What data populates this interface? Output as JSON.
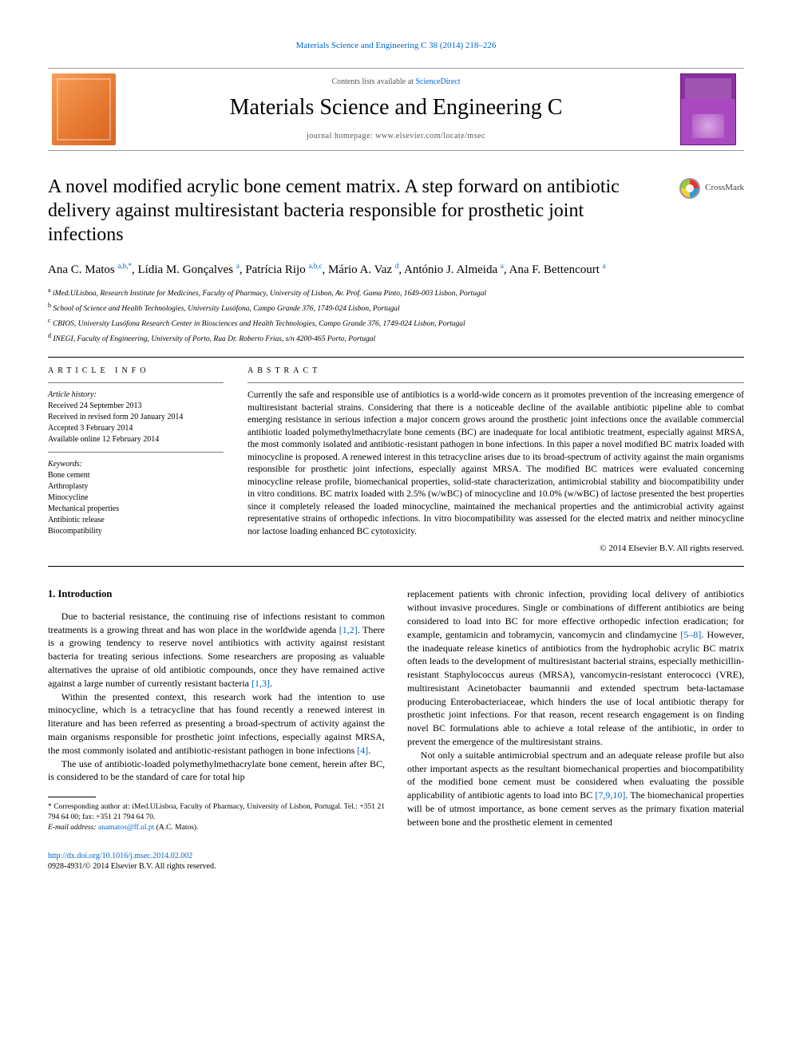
{
  "top_link": "Materials Science and Engineering C 38 (2014) 218–226",
  "header": {
    "contents_prefix": "Contents lists available at ",
    "contents_link": "ScienceDirect",
    "journal_title": "Materials Science and Engineering C",
    "homepage_prefix": "journal homepage: ",
    "homepage": "www.elsevier.com/locate/msec"
  },
  "crossmark_label": "CrossMark",
  "article_title": "A novel modified acrylic bone cement matrix. A step forward on antibiotic delivery against multiresistant bacteria responsible for prosthetic joint infections",
  "authors_html_parts": [
    {
      "name": "Ana C. Matos ",
      "sup": "a,b,",
      "star": "*"
    },
    {
      "name": ", Lídia M. Gonçalves ",
      "sup": "a"
    },
    {
      "name": ", Patrícia Rijo ",
      "sup": "a,b,c"
    },
    {
      "name": ", Mário A. Vaz ",
      "sup": "d"
    },
    {
      "name": ", António J. Almeida ",
      "sup": "a"
    },
    {
      "name": ", Ana F. Bettencourt ",
      "sup": "a"
    }
  ],
  "affiliations": [
    {
      "key": "a",
      "text": "iMed.ULisboa, Research Institute for Medicines, Faculty of Pharmacy, University of Lisbon, Av. Prof. Gama Pinto, 1649-003 Lisbon, Portugal"
    },
    {
      "key": "b",
      "text": "School of Science and Health Technologies, University Lusófona, Campo Grande 376, 1749-024 Lisbon, Portugal"
    },
    {
      "key": "c",
      "text": "CBIOS, University Lusófona Research Center in Biosciences and Health Technologies, Campo Grande 376, 1749-024 Lisbon, Portugal"
    },
    {
      "key": "d",
      "text": "INEGI, Faculty of Engineering, University of Porto, Rua Dr. Roberto Frias, s/n 4200-465 Porto, Portugal"
    }
  ],
  "info": {
    "heading": "article info",
    "history_head": "Article history:",
    "history": [
      "Received 24 September 2013",
      "Received in revised form 20 January 2014",
      "Accepted 3 February 2014",
      "Available online 12 February 2014"
    ],
    "keywords_head": "Keywords:",
    "keywords": [
      "Bone cement",
      "Arthroplasty",
      "Minocycline",
      "Mechanical properties",
      "Antibiotic release",
      "Biocompatibility"
    ]
  },
  "abstract": {
    "heading": "abstract",
    "text": "Currently the safe and responsible use of antibiotics is a world-wide concern as it promotes prevention of the increasing emergence of multiresistant bacterial strains. Considering that there is a noticeable decline of the available antibiotic pipeline able to combat emerging resistance in serious infection a major concern grows around the prosthetic joint infections once the available commercial antibiotic loaded polymethylmethacrylate bone cements (BC) are inadequate for local antibiotic treatment, especially against MRSA, the most commonly isolated and antibiotic-resistant pathogen in bone infections. In this paper a novel modified BC matrix loaded with minocycline is proposed. A renewed interest in this tetracycline arises due to its broad-spectrum of activity against the main organisms responsible for prosthetic joint infections, especially against MRSA. The modified BC matrices were evaluated concerning minocycline release profile, biomechanical properties, solid-state characterization, antimicrobial stability and biocompatibility under in vitro conditions. BC matrix loaded with 2.5% (w/wBC) of minocycline and 10.0% (w/wBC) of lactose presented the best properties since it completely released the loaded minocycline, maintained the mechanical properties and the antimicrobial activity against representative strains of orthopedic infections. In vitro biocompatibility was assessed for the elected matrix and neither minocycline nor lactose loading enhanced BC cytotoxicity.",
    "copyright": "© 2014 Elsevier B.V. All rights reserved."
  },
  "intro": {
    "heading": "1. Introduction",
    "p1a": "Due to bacterial resistance, the continuing rise of infections resistant to common treatments is a growing threat and has won place in the worldwide agenda ",
    "r1": "[1,2]",
    "p1b": ". There is a growing tendency to reserve novel antibiotics with activity against resistant bacteria for treating serious infections. Some researchers are proposing as valuable alternatives the upraise of old antibiotic compounds, once they have remained active against a large number of currently resistant bacteria ",
    "r2": "[1,3]",
    "p1c": ".",
    "p2a": "Within the presented context, this research work had the intention to use minocycline, which is a tetracycline that has found recently a renewed interest in literature and has been referred as presenting a broad-spectrum of activity against the main organisms responsible for prosthetic joint infections, especially against MRSA, the most commonly isolated and antibiotic-resistant pathogen in bone infections ",
    "r3": "[4]",
    "p2b": ".",
    "p3": "The use of antibiotic-loaded polymethylmethacrylate bone cement, herein after BC, is considered to be the standard of care for total hip",
    "p4a": "replacement patients with chronic infection, providing local delivery of antibiotics without invasive procedures. Single or combinations of different antibiotics are being considered to load into BC for more effective orthopedic infection eradication; for example, gentamicin and tobramycin, vancomycin and clindamycine ",
    "r4": "[5–8]",
    "p4b": ". However, the inadequate release kinetics of antibiotics from the hydrophobic acrylic BC matrix often leads to the development of multiresistant bacterial strains, especially methicillin-resistant Staphylococcus aureus (MRSA), vancomycin-resistant enterococci (VRE), multiresistant Acinetobacter baumannii and extended spectrum beta-lactamase producing Enterobacteriaceae, which hinders the use of local antibiotic therapy for prosthetic joint infections. For that reason, recent research engagement is on finding novel BC formulations able to achieve a total release of the antibiotic, in order to prevent the emergence of the multiresistant strains.",
    "p5a": "Not only a suitable antimicrobial spectrum and an adequate release profile but also other important aspects as the resultant biomechanical properties and biocompatibility of the modified bone cement must be considered when evaluating the possible applicability of antibiotic agents to load into BC ",
    "r5": "[7,9,10]",
    "p5b": ". The biomechanical properties will be of utmost importance, as bone cement serves as the primary fixation material between bone and the prosthetic element in cemented"
  },
  "corresponding": {
    "star": "*",
    "text": " Corresponding author at: iMed.ULisboa, Faculty of Pharmacy, University of Lisbon, Portugal. Tel.: +351 21 794 64 00; fax: +351 21 794 64 70.",
    "email_label": "E-mail address: ",
    "email": "anamatos@ff.ul.pt",
    "email_tail": " (A.C. Matos)."
  },
  "footer": {
    "doi": "http://dx.doi.org/10.1016/j.msec.2014.02.002",
    "issn": "0928-4931/© 2014 Elsevier B.V. All rights reserved."
  }
}
